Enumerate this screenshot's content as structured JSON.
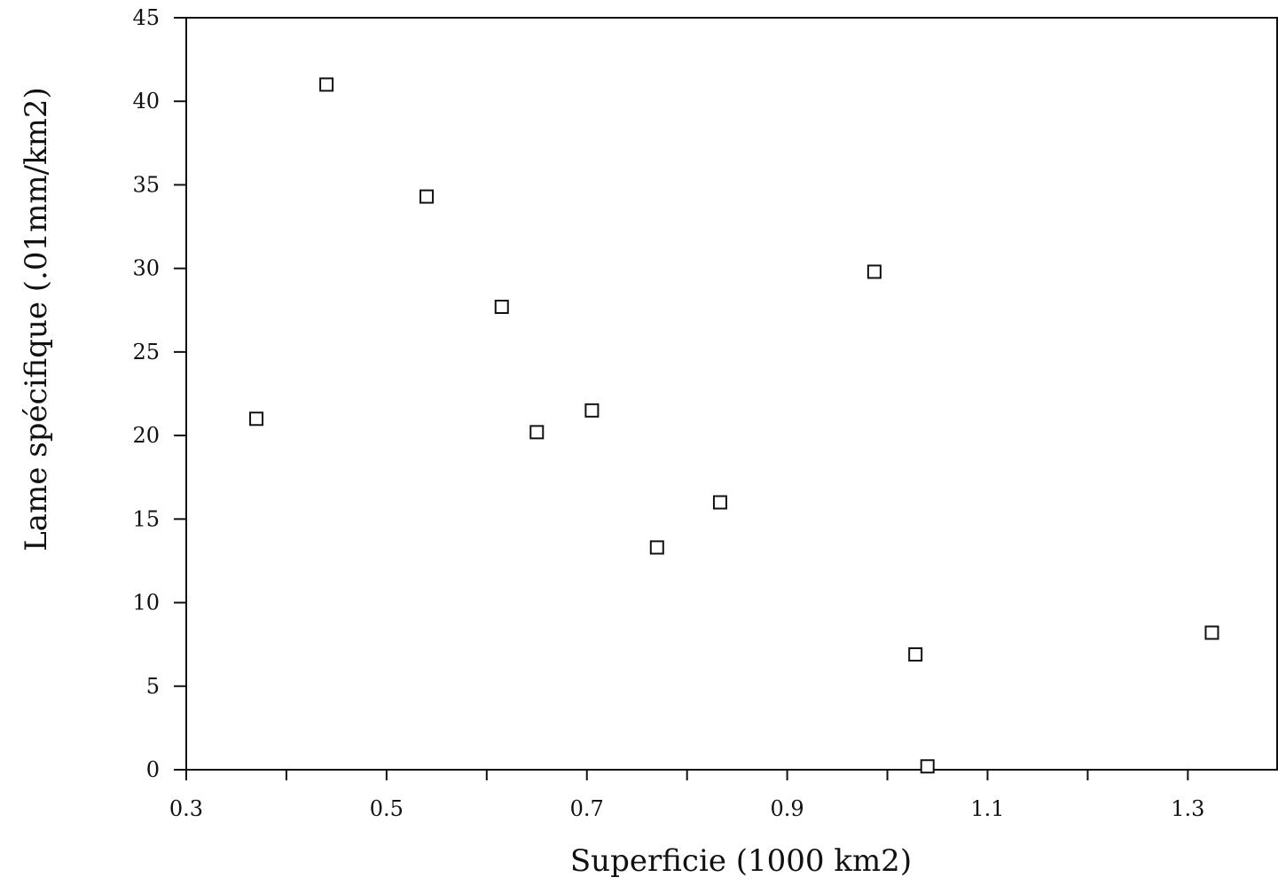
{
  "chart_data": {
    "type": "scatter",
    "title": "",
    "xlabel": "Superficie (1000 km2)",
    "ylabel": "Lame spécifique (.01mm/km2)",
    "xlim": [
      0.3,
      1.39
    ],
    "ylim": [
      0,
      45
    ],
    "x_ticks": [
      0.3,
      0.4,
      0.5,
      0.6,
      0.7,
      0.8,
      0.9,
      1.0,
      1.1,
      1.2,
      1.3
    ],
    "x_tick_labels": [
      "0.3",
      "",
      "0.5",
      "",
      "0.7",
      "",
      "0.9",
      "",
      "1.1",
      "",
      "1.3"
    ],
    "y_ticks": [
      0,
      5,
      10,
      15,
      20,
      25,
      30,
      35,
      40,
      45
    ],
    "y_tick_labels": [
      "0",
      "5",
      "10",
      "15",
      "20",
      "25",
      "30",
      "35",
      "40",
      "45"
    ],
    "marker": "open-square",
    "grid": false,
    "points": [
      {
        "x": 0.37,
        "y": 21.0
      },
      {
        "x": 0.44,
        "y": 41.0
      },
      {
        "x": 0.54,
        "y": 34.3
      },
      {
        "x": 0.615,
        "y": 27.7
      },
      {
        "x": 0.65,
        "y": 20.2
      },
      {
        "x": 0.705,
        "y": 21.5
      },
      {
        "x": 0.77,
        "y": 13.3
      },
      {
        "x": 0.833,
        "y": 16.0
      },
      {
        "x": 0.987,
        "y": 29.8
      },
      {
        "x": 1.028,
        "y": 6.9
      },
      {
        "x": 1.04,
        "y": 0.2
      },
      {
        "x": 1.324,
        "y": 8.2
      }
    ]
  }
}
